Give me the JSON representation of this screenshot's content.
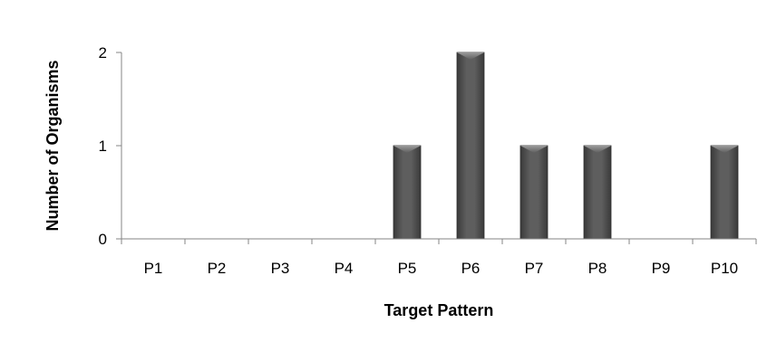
{
  "chart_data": {
    "type": "bar",
    "title": "",
    "xlabel": "Target Pattern",
    "ylabel": "Number of Organisms",
    "categories": [
      "P1",
      "P2",
      "P3",
      "P4",
      "P5",
      "P6",
      "P7",
      "P8",
      "P9",
      "P10"
    ],
    "values": [
      0,
      0,
      0,
      0,
      1,
      2,
      1,
      1,
      0,
      1
    ],
    "ylim": [
      0,
      2
    ],
    "yticks": [
      "0",
      "1",
      "2"
    ],
    "grid": false,
    "legend": "none",
    "bar_color": "#555555"
  }
}
